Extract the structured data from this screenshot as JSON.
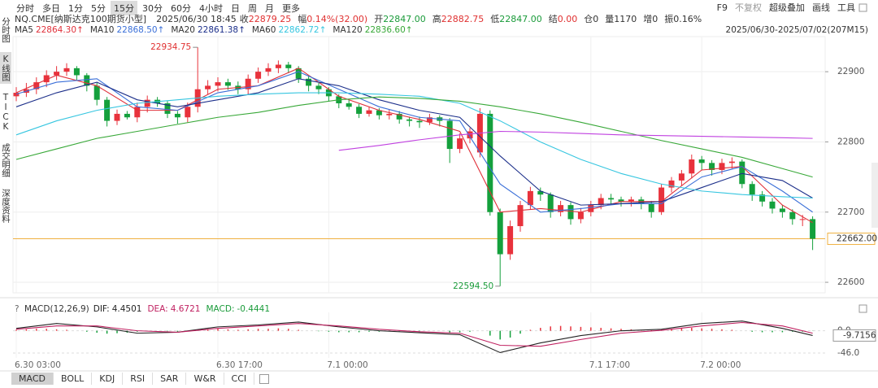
{
  "toolbar": {
    "tabs": [
      "分时",
      "多日",
      "1分",
      "5分",
      "15分",
      "30分",
      "60分",
      "4小时",
      "日",
      "周",
      "月",
      "更多"
    ],
    "selected": 4,
    "right": [
      "F9",
      "不复权",
      "超级叠加",
      "画线",
      "工具"
    ]
  },
  "sidebar": {
    "items": [
      "分时图",
      "K线图",
      "TICK",
      "成交明细",
      "深度资料"
    ],
    "selected": 1
  },
  "quote": {
    "symbol": "NQ.CME[纳斯达克100期货小型]",
    "time": "2025/06/30 18:45",
    "fields": [
      {
        "label": "收",
        "value": "22879.25",
        "color": "#e03030"
      },
      {
        "label": "幅",
        "value": "0.14%(32.00)",
        "color": "#e03030"
      },
      {
        "label": "开",
        "value": "22847.00",
        "color": "#1a9b3a"
      },
      {
        "label": "高",
        "value": "22882.75",
        "color": "#e03030"
      },
      {
        "label": "低",
        "value": "22847.00",
        "color": "#1a9b3a"
      },
      {
        "label": "结",
        "value": "0.00",
        "color": "#e03030"
      },
      {
        "label": "仓",
        "value": "0"
      },
      {
        "label": "量",
        "value": "1170"
      },
      {
        "label": "增",
        "value": "0"
      },
      {
        "label": "振",
        "value": "0.16%"
      }
    ]
  },
  "range": "2025/06/30-2025/07/02(207M15)",
  "chart_data": {
    "type": "candlestick",
    "open": [
      22865,
      22870,
      22875,
      22885,
      22895,
      22900,
      22905,
      22895,
      22880,
      22860,
      22830,
      22840,
      22835,
      22850,
      22860,
      22855,
      22840,
      22835,
      22850,
      22875,
      22880,
      22885,
      22880,
      22875,
      22890,
      22900,
      22905,
      22910,
      22905,
      22890,
      22880,
      22875,
      22865,
      22855,
      22850,
      22840,
      22845,
      22838,
      22840,
      22832,
      22830,
      22828,
      22835,
      22830,
      22790,
      22805,
      22785,
      22840,
      22700,
      22640,
      22680,
      22710,
      22730,
      22725,
      22700,
      22710,
      22690,
      22700,
      22710,
      22720,
      22718,
      22715,
      22718,
      22712,
      22700,
      22735,
      22745,
      22755,
      22775,
      22770,
      22760,
      22770,
      22772,
      22740,
      22725,
      22715,
      22705,
      22700,
      22690,
      22690
    ],
    "high": [
      22878,
      22884,
      22892,
      22902,
      22908,
      22912,
      22908,
      22898,
      22884,
      22864,
      22846,
      22844,
      22856,
      22866,
      22864,
      22858,
      22844,
      22856,
      22934.75,
      22888,
      22892,
      22890,
      22886,
      22896,
      22906,
      22912,
      22916,
      22914,
      22908,
      22894,
      22884,
      22878,
      22868,
      22860,
      22854,
      22850,
      22848,
      22846,
      22844,
      22836,
      22836,
      22840,
      22838,
      22834,
      22812,
      22820,
      22848,
      22845,
      22705,
      22688,
      22716,
      22736,
      22735,
      22728,
      22716,
      22714,
      22706,
      22716,
      22726,
      22726,
      22722,
      22722,
      22722,
      22716,
      22740,
      22750,
      22760,
      22782,
      22780,
      22774,
      22776,
      22778,
      22775,
      22744,
      22730,
      22720,
      22710,
      22704,
      22696,
      22694
    ],
    "low": [
      22858,
      22864,
      22868,
      22878,
      22888,
      22894,
      22888,
      22872,
      22852,
      22822,
      22824,
      22832,
      22828,
      22842,
      22850,
      22834,
      22826,
      22828,
      22842,
      22868,
      22872,
      22874,
      22868,
      22868,
      22884,
      22894,
      22898,
      22898,
      22884,
      22872,
      22868,
      22858,
      22848,
      22846,
      22834,
      22836,
      22832,
      22832,
      22826,
      22822,
      22820,
      22824,
      22822,
      22770,
      22784,
      22798,
      22778,
      22695,
      22594.5,
      22632,
      22672,
      22704,
      22716,
      22692,
      22694,
      22682,
      22684,
      22694,
      22704,
      22710,
      22708,
      22708,
      22704,
      22692,
      22696,
      22728,
      22738,
      22748,
      22760,
      22752,
      22754,
      22762,
      22734,
      22716,
      22708,
      22698,
      22692,
      22682,
      22680,
      22646
    ],
    "close": [
      22870,
      22875,
      22885,
      22895,
      22900,
      22905,
      22895,
      22880,
      22860,
      22830,
      22840,
      22835,
      22850,
      22860,
      22855,
      22840,
      22835,
      22850,
      22875,
      22880,
      22885,
      22880,
      22875,
      22890,
      22900,
      22905,
      22910,
      22905,
      22890,
      22880,
      22875,
      22865,
      22855,
      22850,
      22840,
      22845,
      22838,
      22840,
      22832,
      22830,
      22828,
      22835,
      22830,
      22790,
      22805,
      22815,
      22840,
      22700,
      22640,
      22680,
      22710,
      22730,
      22725,
      22700,
      22710,
      22690,
      22700,
      22710,
      22720,
      22718,
      22715,
      22718,
      22712,
      22700,
      22735,
      22745,
      22755,
      22775,
      22770,
      22760,
      22770,
      22772,
      22740,
      22725,
      22715,
      22705,
      22700,
      22690,
      22690,
      22662
    ],
    "up_color": "#e8323c",
    "down_color": "#14a03c",
    "ylim": [
      22585,
      22950
    ],
    "yticks": [
      22600,
      22700,
      22800,
      22900
    ],
    "grid": true,
    "last_price": {
      "value": 22662,
      "label": "22662.00"
    },
    "annotations": [
      {
        "index": 18,
        "value": 22934.75,
        "label": "22934.75",
        "color": "#e03030"
      },
      {
        "index": 48,
        "value": 22594.5,
        "label": "22594.50",
        "color": "#1a9b3a"
      }
    ],
    "xticks": [
      {
        "value": 0,
        "label": "6.30 03:00"
      },
      {
        "value": 20,
        "label": "6.30 17:00"
      },
      {
        "value": 31,
        "label": "7.1 00:00"
      },
      {
        "value": 57,
        "label": "7.1 17:00"
      },
      {
        "value": 68,
        "label": "7.2 00:00"
      }
    ],
    "ma_x": [
      0,
      4,
      8,
      12,
      16,
      20,
      24,
      28,
      32,
      36,
      40,
      44,
      48,
      52,
      56,
      60,
      64,
      68,
      72,
      76,
      79
    ],
    "series": [
      {
        "name": "MA5",
        "legend_value": "22864.30↑",
        "color": "#e0303a",
        "values": [
          22870,
          22895,
          22880,
          22845,
          22845,
          22875,
          22880,
          22905,
          22865,
          22845,
          22832,
          22815,
          22700,
          22705,
          22700,
          22715,
          22715,
          22760,
          22765,
          22710,
          22685
        ]
      },
      {
        "name": "MA10",
        "legend_value": "22868.50↑",
        "color": "#3a6fd8",
        "values": [
          22868,
          22885,
          22890,
          22850,
          22845,
          22870,
          22880,
          22900,
          22875,
          22850,
          22835,
          22830,
          22740,
          22700,
          22705,
          22712,
          22712,
          22750,
          22765,
          22730,
          22700
        ]
      },
      {
        "name": "MA20",
        "legend_value": "22861.38↑",
        "color": "#1c2f8a",
        "values": [
          22850,
          22870,
          22885,
          22860,
          22850,
          22860,
          22870,
          22890,
          22880,
          22860,
          22845,
          22835,
          22780,
          22730,
          22710,
          22712,
          22715,
          22735,
          22755,
          22745,
          22720
        ]
      },
      {
        "name": "MA60",
        "legend_value": "22862.72↑",
        "color": "#36c6e0",
        "values": [
          22810,
          22830,
          22845,
          22855,
          22860,
          22865,
          22868,
          22870,
          22870,
          22868,
          22865,
          22855,
          22830,
          22800,
          22775,
          22755,
          22740,
          22730,
          22725,
          22722,
          22720
        ]
      },
      {
        "name": "MA120",
        "legend_value": "22836.60↑",
        "color": "#38a838",
        "values": [
          22775,
          22790,
          22805,
          22815,
          22825,
          22835,
          22842,
          22852,
          22860,
          22864,
          22862,
          22858,
          22850,
          22840,
          22828,
          22815,
          22802,
          22790,
          22778,
          22762,
          22750
        ]
      },
      {
        "color": "#c040e0",
        "values": [
          null,
          null,
          null,
          null,
          null,
          null,
          null,
          null,
          22788,
          22795,
          22803,
          22810,
          22815,
          22814,
          22812,
          22810,
          22809,
          22808,
          22807,
          22806,
          22805
        ]
      }
    ],
    "macd": {
      "title": "MACD(12,26,9)",
      "fields": [
        {
          "label": "DIF:",
          "value": "4.4501",
          "color": "#222"
        },
        {
          "label": "DEA:",
          "value": "4.6721",
          "color": "#c02060"
        },
        {
          "label": "MACD:",
          "value": "-0.4441",
          "color": "#1a9b3a"
        }
      ],
      "ylim": [
        -56,
        38
      ],
      "yticks": [
        {
          "value": 0,
          "label": "0.0"
        },
        {
          "value": -46,
          "label": "-46.0"
        }
      ],
      "histogram": [
        2,
        3,
        4,
        4,
        3,
        2,
        0,
        -2,
        -4,
        -6,
        -5,
        -4,
        -2,
        -1,
        0,
        -1,
        -2,
        -1,
        2,
        3,
        4,
        3,
        2,
        3,
        4,
        4,
        5,
        4,
        2,
        0,
        -1,
        -2,
        -3,
        -3,
        -3,
        -2,
        -2,
        -1,
        -1,
        -1,
        -1,
        0,
        0,
        -4,
        -3,
        -2,
        0,
        -10,
        -18,
        -14,
        -6,
        2,
        6,
        9,
        10,
        9,
        8,
        7,
        6,
        5,
        4,
        3,
        2,
        1,
        3,
        4,
        5,
        6,
        5,
        4,
        3,
        2,
        0,
        -2,
        -3,
        -3,
        -3,
        -2,
        -2,
        -0.4441
      ],
      "dif": {
        "color": "#222",
        "values": [
          5,
          15,
          8,
          -5,
          -3,
          8,
          12,
          18,
          8,
          0,
          -4,
          -8,
          -45,
          -25,
          -10,
          0,
          3,
          15,
          20,
          5,
          -9.7156
        ]
      },
      "dea": {
        "color": "#c02060",
        "values": [
          3,
          10,
          10,
          0,
          -3,
          5,
          10,
          15,
          10,
          3,
          -2,
          -5,
          -30,
          -32,
          -18,
          -5,
          1,
          10,
          17,
          10,
          -5
        ]
      },
      "last_value": -9.7156
    }
  },
  "indicator_tabs": {
    "tabs": [
      "MACD",
      "BOLL",
      "KDJ",
      "RSI",
      "SAR",
      "W&R",
      "CCI"
    ],
    "selected": 0
  }
}
